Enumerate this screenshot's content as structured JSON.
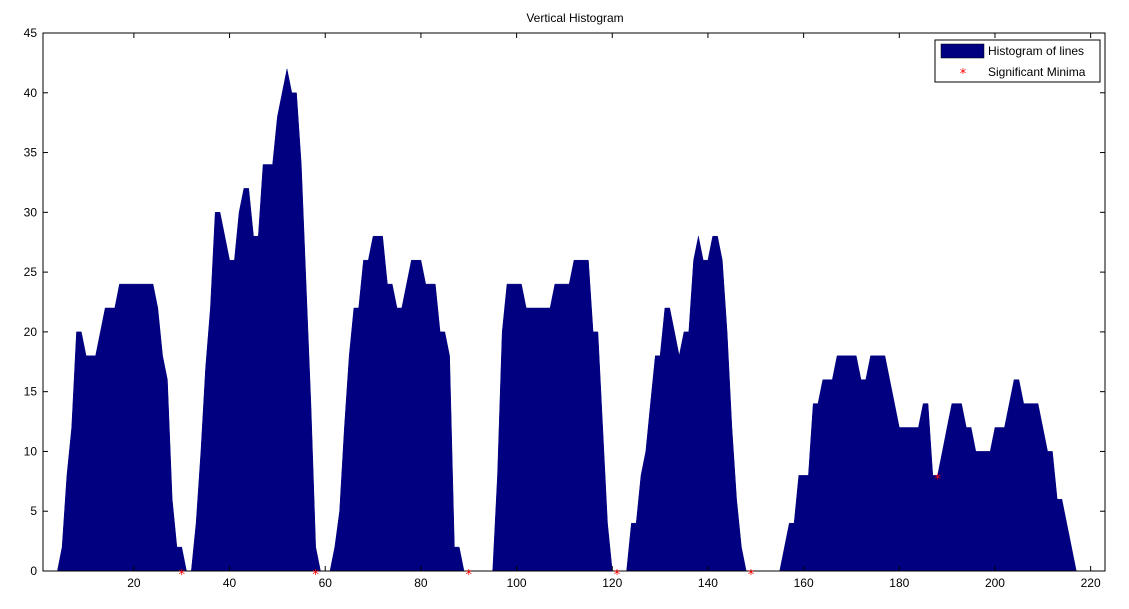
{
  "chart_data": {
    "type": "area",
    "title": "Vertical Histogram",
    "xlabel": "",
    "ylabel": "",
    "xlim": [
      1,
      223
    ],
    "ylim": [
      0,
      45
    ],
    "xticks": [
      20,
      40,
      60,
      80,
      100,
      120,
      140,
      160,
      180,
      200,
      220
    ],
    "yticks": [
      0,
      5,
      10,
      15,
      20,
      25,
      30,
      35,
      40,
      45
    ],
    "legend": {
      "location": "top-right",
      "entries": [
        "Histogram of lines",
        "Significant Minima"
      ]
    },
    "series": [
      {
        "name": "Histogram of lines",
        "kind": "area",
        "color": "#000080",
        "points": [
          [
            4,
            0
          ],
          [
            5,
            2
          ],
          [
            6,
            8
          ],
          [
            7,
            12
          ],
          [
            8,
            20
          ],
          [
            9,
            20
          ],
          [
            10,
            18
          ],
          [
            11,
            18
          ],
          [
            12,
            18
          ],
          [
            13,
            20
          ],
          [
            14,
            22
          ],
          [
            15,
            22
          ],
          [
            16,
            22
          ],
          [
            17,
            24
          ],
          [
            18,
            24
          ],
          [
            19,
            24
          ],
          [
            20,
            24
          ],
          [
            21,
            24
          ],
          [
            22,
            24
          ],
          [
            23,
            24
          ],
          [
            24,
            24
          ],
          [
            25,
            22
          ],
          [
            26,
            18
          ],
          [
            27,
            16
          ],
          [
            28,
            6
          ],
          [
            29,
            2
          ],
          [
            30,
            2
          ],
          [
            31,
            0
          ],
          [
            32,
            0
          ],
          [
            33,
            4
          ],
          [
            34,
            10
          ],
          [
            35,
            17
          ],
          [
            36,
            22
          ],
          [
            37,
            30
          ],
          [
            38,
            30
          ],
          [
            39,
            28
          ],
          [
            40,
            26
          ],
          [
            41,
            26
          ],
          [
            42,
            30
          ],
          [
            43,
            32
          ],
          [
            44,
            32
          ],
          [
            45,
            28
          ],
          [
            46,
            28
          ],
          [
            47,
            34
          ],
          [
            48,
            34
          ],
          [
            49,
            34
          ],
          [
            50,
            38
          ],
          [
            51,
            40
          ],
          [
            52,
            42
          ],
          [
            53,
            40
          ],
          [
            54,
            40
          ],
          [
            55,
            34
          ],
          [
            56,
            24
          ],
          [
            57,
            14
          ],
          [
            58,
            2
          ],
          [
            59,
            0
          ],
          [
            61,
            0
          ],
          [
            62,
            2
          ],
          [
            63,
            5
          ],
          [
            64,
            12
          ],
          [
            65,
            18
          ],
          [
            66,
            22
          ],
          [
            67,
            22
          ],
          [
            68,
            26
          ],
          [
            69,
            26
          ],
          [
            70,
            28
          ],
          [
            71,
            28
          ],
          [
            72,
            28
          ],
          [
            73,
            24
          ],
          [
            74,
            24
          ],
          [
            75,
            22
          ],
          [
            76,
            22
          ],
          [
            77,
            24
          ],
          [
            78,
            26
          ],
          [
            79,
            26
          ],
          [
            80,
            26
          ],
          [
            81,
            24
          ],
          [
            82,
            24
          ],
          [
            83,
            24
          ],
          [
            84,
            20
          ],
          [
            85,
            20
          ],
          [
            86,
            18
          ],
          [
            87,
            2
          ],
          [
            88,
            2
          ],
          [
            89,
            0
          ],
          [
            95,
            0
          ],
          [
            96,
            8
          ],
          [
            97,
            20
          ],
          [
            98,
            24
          ],
          [
            99,
            24
          ],
          [
            100,
            24
          ],
          [
            101,
            24
          ],
          [
            102,
            22
          ],
          [
            103,
            22
          ],
          [
            104,
            22
          ],
          [
            105,
            22
          ],
          [
            106,
            22
          ],
          [
            107,
            22
          ],
          [
            108,
            24
          ],
          [
            109,
            24
          ],
          [
            110,
            24
          ],
          [
            111,
            24
          ],
          [
            112,
            26
          ],
          [
            113,
            26
          ],
          [
            114,
            26
          ],
          [
            115,
            26
          ],
          [
            116,
            20
          ],
          [
            117,
            20
          ],
          [
            118,
            12
          ],
          [
            119,
            4
          ],
          [
            120,
            0
          ],
          [
            123,
            0
          ],
          [
            124,
            4
          ],
          [
            125,
            4
          ],
          [
            126,
            8
          ],
          [
            127,
            10
          ],
          [
            128,
            14
          ],
          [
            129,
            18
          ],
          [
            130,
            18
          ],
          [
            131,
            22
          ],
          [
            132,
            22
          ],
          [
            133,
            20
          ],
          [
            134,
            18
          ],
          [
            135,
            20
          ],
          [
            136,
            20
          ],
          [
            137,
            26
          ],
          [
            138,
            28
          ],
          [
            139,
            26
          ],
          [
            140,
            26
          ],
          [
            141,
            28
          ],
          [
            142,
            28
          ],
          [
            143,
            26
          ],
          [
            144,
            20
          ],
          [
            145,
            12
          ],
          [
            146,
            6
          ],
          [
            147,
            2
          ],
          [
            148,
            0
          ],
          [
            155,
            0
          ],
          [
            156,
            2
          ],
          [
            157,
            4
          ],
          [
            158,
            4
          ],
          [
            159,
            8
          ],
          [
            160,
            8
          ],
          [
            161,
            8
          ],
          [
            162,
            14
          ],
          [
            163,
            14
          ],
          [
            164,
            16
          ],
          [
            165,
            16
          ],
          [
            166,
            16
          ],
          [
            167,
            18
          ],
          [
            168,
            18
          ],
          [
            169,
            18
          ],
          [
            170,
            18
          ],
          [
            171,
            18
          ],
          [
            172,
            16
          ],
          [
            173,
            16
          ],
          [
            174,
            18
          ],
          [
            175,
            18
          ],
          [
            176,
            18
          ],
          [
            177,
            18
          ],
          [
            178,
            16
          ],
          [
            179,
            14
          ],
          [
            180,
            12
          ],
          [
            181,
            12
          ],
          [
            182,
            12
          ],
          [
            183,
            12
          ],
          [
            184,
            12
          ],
          [
            185,
            14
          ],
          [
            186,
            14
          ],
          [
            187,
            8
          ],
          [
            188,
            8
          ],
          [
            189,
            10
          ],
          [
            190,
            12
          ],
          [
            191,
            14
          ],
          [
            192,
            14
          ],
          [
            193,
            14
          ],
          [
            194,
            12
          ],
          [
            195,
            12
          ],
          [
            196,
            10
          ],
          [
            197,
            10
          ],
          [
            198,
            10
          ],
          [
            199,
            10
          ],
          [
            200,
            12
          ],
          [
            201,
            12
          ],
          [
            202,
            12
          ],
          [
            203,
            14
          ],
          [
            204,
            16
          ],
          [
            205,
            16
          ],
          [
            206,
            14
          ],
          [
            207,
            14
          ],
          [
            208,
            14
          ],
          [
            209,
            14
          ],
          [
            210,
            12
          ],
          [
            211,
            10
          ],
          [
            212,
            10
          ],
          [
            213,
            6
          ],
          [
            214,
            6
          ],
          [
            215,
            4
          ],
          [
            216,
            2
          ],
          [
            217,
            0
          ]
        ]
      },
      {
        "name": "Significant Minima",
        "kind": "scatter",
        "marker": "*",
        "color": "#ff0000",
        "points": [
          [
            30,
            0
          ],
          [
            58,
            0
          ],
          [
            90,
            0
          ],
          [
            121,
            0
          ],
          [
            149,
            0
          ],
          [
            188,
            8
          ]
        ]
      }
    ]
  }
}
